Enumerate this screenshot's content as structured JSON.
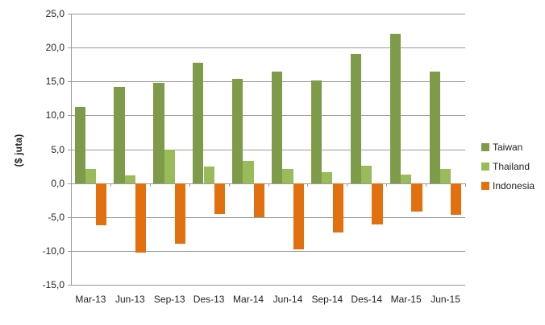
{
  "chart_data": {
    "type": "bar",
    "title": "",
    "ylabel": "($ juta)",
    "xlabel": "",
    "categories": [
      "Mar-13",
      "Jun-13",
      "Sep-13",
      "Des-13",
      "Mar-14",
      "Jun-14",
      "Sep-14",
      "Des-14",
      "Mar-15",
      "Jun-15"
    ],
    "series": [
      {
        "name": "Taiwan",
        "color": "#7d9b49",
        "values": [
          11.2,
          14.2,
          14.8,
          17.8,
          15.4,
          16.5,
          15.1,
          19.1,
          22.0,
          16.5
        ]
      },
      {
        "name": "Thailand",
        "color": "#9abb59",
        "values": [
          2.1,
          1.1,
          4.9,
          2.4,
          3.3,
          2.1,
          1.6,
          2.6,
          1.3,
          2.1
        ]
      },
      {
        "name": "Indonesia",
        "color": "#e2700e",
        "values": [
          -6.2,
          -10.3,
          -8.9,
          -4.5,
          -5.0,
          -9.8,
          -7.3,
          -6.1,
          -4.2,
          -4.7
        ]
      }
    ],
    "ylim": [
      -15,
      25
    ],
    "ytick_step": 5,
    "ytick_labels": [
      "25,0",
      "20,0",
      "15,0",
      "10,0",
      "5,0",
      "0,0",
      "-5,0",
      "-10,0",
      "-15,0"
    ],
    "grid": true,
    "legend_position": "right",
    "colors": {
      "gridline": "#9a9a9a",
      "axis": "#9a9a9a",
      "text": "#1f1f1f",
      "background": "#ffffff"
    }
  }
}
